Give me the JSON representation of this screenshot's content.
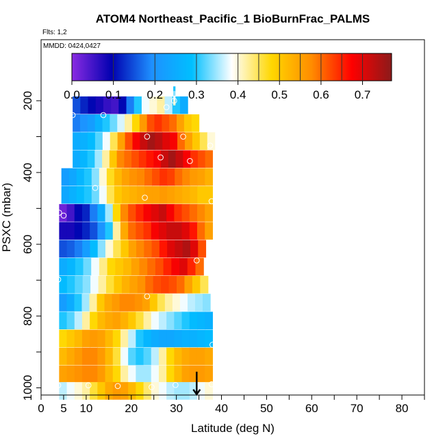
{
  "title": "ATOM4 Northeast_Pacific_1 BioBurnFrac_PALMS",
  "flights_label": "Flts: 1,2",
  "dates_label": "MMDD: 0424,0427",
  "chart_data": {
    "type": "heatmap",
    "xlabel": "Latitude (deg N)",
    "ylabel": "PSXC (mbar)",
    "xlim": [
      0,
      85
    ],
    "ylim": [
      1020,
      30
    ],
    "x_ticks": [
      0,
      5,
      10,
      20,
      30,
      40,
      50,
      60,
      70,
      80
    ],
    "y_ticks": [
      200,
      400,
      600,
      800,
      1000
    ],
    "colorbar": {
      "ticks": [
        0.0,
        0.1,
        0.2,
        0.3,
        0.4,
        0.5,
        0.6,
        0.7
      ],
      "tick_labels": [
        "0.0",
        "0.1",
        "0.2",
        "0.3",
        "0.4",
        "0.5",
        "0.6",
        "0.7"
      ],
      "range": [
        0,
        0.77
      ],
      "colors": [
        "#8a2be2",
        "#0000b0",
        "#1e90ff",
        "#00bfff",
        "#ffffff",
        "#ffd700",
        "#ff8c00",
        "#ff0000",
        "#8b1a1a"
      ]
    },
    "lat_bins": [
      4,
      5.5,
      7,
      8.5,
      10,
      11.5,
      13,
      14.5,
      16,
      17.5,
      19,
      20.5,
      22,
      23.5,
      25,
      26.5,
      28,
      29.5,
      31,
      32.5,
      34,
      35.5,
      37
    ],
    "rows": [
      {
        "p": 212,
        "lat_start": 7,
        "lat_end": 32.5,
        "values": [
          0.15,
          0.12,
          0.1,
          0.08,
          0.06,
          0.05,
          0.1,
          0.18,
          0.3,
          0.38,
          0.4,
          0.42,
          0.36,
          0.3,
          0.25
        ]
      },
      {
        "p": 262,
        "lat_start": 7,
        "lat_end": 35,
        "values": [
          0.18,
          0.2,
          0.22,
          0.26,
          0.3,
          0.33,
          0.37,
          0.42,
          0.48,
          0.56,
          0.62,
          0.64,
          0.62,
          0.6,
          0.55,
          0.5,
          0.48
        ]
      },
      {
        "p": 312,
        "lat_start": 7,
        "lat_end": 38.5,
        "values": [
          0.25,
          0.26,
          0.28,
          0.32,
          0.38,
          0.45,
          0.55,
          0.62,
          0.68,
          0.72,
          0.75,
          0.73,
          0.7,
          0.68,
          0.6,
          0.55,
          0.5,
          0.45,
          0.4
        ]
      },
      {
        "p": 362,
        "lat_start": 7,
        "lat_end": 38,
        "values": [
          0.25,
          0.27,
          0.3,
          0.35,
          0.42,
          0.5,
          0.58,
          0.6,
          0.62,
          0.64,
          0.66,
          0.68,
          0.72,
          0.75,
          0.72,
          0.68,
          0.64,
          0.62,
          0.6
        ]
      },
      {
        "p": 412,
        "lat_start": 4.5,
        "lat_end": 38,
        "values": [
          0.22,
          0.24,
          0.27,
          0.3,
          0.34,
          0.4,
          0.47,
          0.52,
          0.55,
          0.57,
          0.58,
          0.6,
          0.62,
          0.64,
          0.63,
          0.6,
          0.58,
          0.56,
          0.55,
          0.53
        ]
      },
      {
        "p": 462,
        "lat_start": 4.5,
        "lat_end": 38,
        "values": [
          0.24,
          0.26,
          0.28,
          0.3,
          0.33,
          0.38,
          0.45,
          0.5,
          0.52,
          0.53,
          0.54,
          0.55,
          0.55,
          0.56,
          0.55,
          0.54,
          0.53,
          0.52,
          0.5,
          0.5
        ]
      },
      {
        "p": 512,
        "lat_start": 4,
        "lat_end": 38,
        "values": [
          0.02,
          0.05,
          0.1,
          0.12,
          0.18,
          0.25,
          0.35,
          0.48,
          0.58,
          0.62,
          0.65,
          0.68,
          0.7,
          0.72,
          0.68,
          0.64,
          0.62,
          0.6,
          0.58,
          0.55
        ]
      },
      {
        "p": 562,
        "lat_start": 4,
        "lat_end": 38,
        "values": [
          0.08,
          0.08,
          0.1,
          0.12,
          0.15,
          0.2,
          0.3,
          0.42,
          0.54,
          0.6,
          0.62,
          0.64,
          0.68,
          0.7,
          0.72,
          0.72,
          0.7,
          0.66,
          0.6,
          0.55
        ]
      },
      {
        "p": 612,
        "lat_start": 4,
        "lat_end": 36.5,
        "values": [
          0.15,
          0.16,
          0.18,
          0.22,
          0.28,
          0.34,
          0.4,
          0.45,
          0.5,
          0.55,
          0.58,
          0.6,
          0.62,
          0.66,
          0.7,
          0.72,
          0.74,
          0.7,
          0.62
        ]
      },
      {
        "p": 662,
        "lat_start": 4,
        "lat_end": 36,
        "values": [
          0.25,
          0.27,
          0.3,
          0.33,
          0.38,
          0.43,
          0.48,
          0.5,
          0.52,
          0.55,
          0.58,
          0.6,
          0.62,
          0.65,
          0.68,
          0.7,
          0.65,
          0.6
        ]
      },
      {
        "p": 712,
        "lat_start": 4,
        "lat_end": 37,
        "values": [
          0.28,
          0.3,
          0.32,
          0.34,
          0.38,
          0.42,
          0.46,
          0.5,
          0.53,
          0.55,
          0.57,
          0.6,
          0.62,
          0.63,
          0.62,
          0.6,
          0.55,
          0.5,
          0.45
        ]
      },
      {
        "p": 762,
        "lat_start": 4,
        "lat_end": 37.5,
        "values": [
          0.22,
          0.25,
          0.3,
          0.35,
          0.42,
          0.5,
          0.54,
          0.56,
          0.58,
          0.58,
          0.57,
          0.55,
          0.5,
          0.45,
          0.42,
          0.4,
          0.38,
          0.36,
          0.35,
          0.34
        ]
      },
      {
        "p": 812,
        "lat_start": 4,
        "lat_end": 38,
        "values": [
          0.3,
          0.32,
          0.36,
          0.42,
          0.48,
          0.52,
          0.54,
          0.55,
          0.53,
          0.5,
          0.46,
          0.42,
          0.38,
          0.36,
          0.34,
          0.32,
          0.3,
          0.28,
          0.27,
          0.26
        ]
      },
      {
        "p": 862,
        "lat_start": 4,
        "lat_end": 38,
        "values": [
          0.48,
          0.5,
          0.52,
          0.55,
          0.56,
          0.55,
          0.52,
          0.48,
          0.42,
          0.36,
          0.3,
          0.27,
          0.25,
          0.24,
          0.24,
          0.25,
          0.26,
          0.26,
          0.27,
          0.28
        ]
      },
      {
        "p": 912,
        "lat_start": 4,
        "lat_end": 38,
        "values": [
          0.52,
          0.54,
          0.56,
          0.58,
          0.58,
          0.56,
          0.52,
          0.46,
          0.38,
          0.32,
          0.3,
          0.32,
          0.36,
          0.42,
          0.48,
          0.52,
          0.54,
          0.55,
          0.55,
          0.54
        ]
      },
      {
        "p": 962,
        "lat_start": 4,
        "lat_end": 38,
        "values": [
          0.55,
          0.56,
          0.57,
          0.58,
          0.58,
          0.56,
          0.52,
          0.48,
          0.42,
          0.38,
          0.35,
          0.35,
          0.38,
          0.42,
          0.48,
          0.52,
          0.55,
          0.56,
          0.56,
          0.55
        ]
      },
      {
        "p": 1008,
        "lat_start": 4,
        "lat_end": 38,
        "values": [
          0.36,
          0.38,
          0.4,
          0.42,
          0.46,
          0.5,
          0.54,
          0.56,
          0.55,
          0.52,
          0.48,
          0.44,
          0.4,
          0.38,
          0.36,
          0.35,
          0.35,
          0.36,
          0.38,
          0.4
        ]
      }
    ],
    "narrow_column": {
      "lat_start": 29.3,
      "lat_end": 29.8,
      "p_top": 160,
      "p_bottom": 212,
      "values": [
        0.3,
        0.34,
        0.38,
        0.4
      ]
    },
    "points": [
      {
        "lat": 7,
        "p": 240
      },
      {
        "lat": 13.8,
        "p": 240
      },
      {
        "lat": 27.8,
        "p": 218
      },
      {
        "lat": 29.5,
        "p": 200
      },
      {
        "lat": 4.9,
        "p": 300
      },
      {
        "lat": 23.5,
        "p": 300
      },
      {
        "lat": 31.5,
        "p": 300
      },
      {
        "lat": 26.5,
        "p": 358
      },
      {
        "lat": 33,
        "p": 368
      },
      {
        "lat": 37.5,
        "p": 325
      },
      {
        "lat": 12,
        "p": 443
      },
      {
        "lat": 23,
        "p": 470
      },
      {
        "lat": 37.8,
        "p": 480
      },
      {
        "lat": 4,
        "p": 512
      },
      {
        "lat": 5,
        "p": 520
      },
      {
        "lat": 34.5,
        "p": 645
      },
      {
        "lat": 3.8,
        "p": 698
      },
      {
        "lat": 23.5,
        "p": 745
      },
      {
        "lat": 38,
        "p": 880
      },
      {
        "lat": 3.8,
        "p": 993
      },
      {
        "lat": 10.5,
        "p": 993
      },
      {
        "lat": 17,
        "p": 995
      },
      {
        "lat": 24.5,
        "p": 998
      },
      {
        "lat": 29.8,
        "p": 992
      },
      {
        "lat": 37.8,
        "p": 990
      }
    ],
    "arrow": {
      "lat": 34.5,
      "p_from": 955,
      "p_to": 1018
    }
  }
}
